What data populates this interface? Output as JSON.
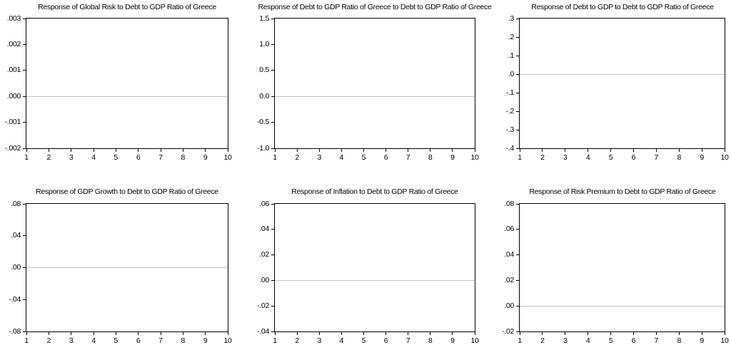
{
  "page": {
    "background": "#ffffff"
  },
  "colors": {
    "axis": "#000000",
    "zero_line": "#c4c4c4",
    "text": "#000000",
    "plot_background": "#ffffff"
  },
  "chart_data": [
    {
      "type": "line",
      "title": "Response of Global Risk to Debt to GDP Ratio of Greece",
      "xlabel": "",
      "ylabel": "",
      "xlim": [
        1,
        10
      ],
      "ylim": [
        -0.002,
        0.003
      ],
      "x_ticks": [
        1,
        2,
        3,
        4,
        5,
        6,
        7,
        8,
        9,
        10
      ],
      "y_tick_labels": [
        ".003",
        ".002",
        ".001",
        ".000",
        "-.001",
        "-.002"
      ],
      "y_tick_values": [
        0.003,
        0.002,
        0.001,
        0.0,
        -0.001,
        -0.002
      ],
      "zero_line": 0.0,
      "grid": false,
      "legend": "none",
      "series": []
    },
    {
      "type": "line",
      "title": "Response of Debt to GDP Ratio of Greece to Debt to GDP Ratio of Greece",
      "xlabel": "",
      "ylabel": "",
      "xlim": [
        1,
        10
      ],
      "ylim": [
        -1.0,
        1.5
      ],
      "x_ticks": [
        1,
        2,
        3,
        4,
        5,
        6,
        7,
        8,
        9,
        10
      ],
      "y_tick_labels": [
        "1.5",
        "1.0",
        "0.5",
        "0.0",
        "-0.5",
        "-1.0"
      ],
      "y_tick_values": [
        1.5,
        1.0,
        0.5,
        0.0,
        -0.5,
        -1.0
      ],
      "zero_line": 0.0,
      "grid": false,
      "legend": "none",
      "series": []
    },
    {
      "type": "line",
      "title": "Response of Debt to GDP to Debt to GDP Ratio of Greece",
      "xlabel": "",
      "ylabel": "",
      "xlim": [
        1,
        10
      ],
      "ylim": [
        -0.4,
        0.3
      ],
      "x_ticks": [
        1,
        2,
        3,
        4,
        5,
        6,
        7,
        8,
        9,
        10
      ],
      "y_tick_labels": [
        ".3",
        ".2",
        ".1",
        ".0",
        "-.1",
        "-.2",
        "-.3",
        "-.4"
      ],
      "y_tick_values": [
        0.3,
        0.2,
        0.1,
        0.0,
        -0.1,
        -0.2,
        -0.3,
        -0.4
      ],
      "zero_line": 0.0,
      "grid": false,
      "legend": "none",
      "series": []
    },
    {
      "type": "line",
      "title": "Response of GDP Growth to Debt to GDP Ratio of Greece",
      "xlabel": "",
      "ylabel": "",
      "xlim": [
        1,
        10
      ],
      "ylim": [
        -0.08,
        0.08
      ],
      "x_ticks": [
        1,
        2,
        3,
        4,
        5,
        6,
        7,
        8,
        9,
        10
      ],
      "y_tick_labels": [
        ".08",
        ".04",
        ".00",
        "-.04",
        "-.08"
      ],
      "y_tick_values": [
        0.08,
        0.04,
        0.0,
        -0.04,
        -0.08
      ],
      "zero_line": 0.0,
      "grid": false,
      "legend": "none",
      "series": []
    },
    {
      "type": "line",
      "title": "Response of Inflation to Debt to GDP Ratio of Greece",
      "xlabel": "",
      "ylabel": "",
      "xlim": [
        1,
        10
      ],
      "ylim": [
        -0.04,
        0.06
      ],
      "x_ticks": [
        1,
        2,
        3,
        4,
        5,
        6,
        7,
        8,
        9,
        10
      ],
      "y_tick_labels": [
        ".06",
        ".04",
        ".02",
        ".00",
        "-.02",
        "-.04"
      ],
      "y_tick_values": [
        0.06,
        0.04,
        0.02,
        0.0,
        -0.02,
        -0.04
      ],
      "zero_line": 0.0,
      "grid": false,
      "legend": "none",
      "series": []
    },
    {
      "type": "line",
      "title": "Response of Risk Premium to Debt to GDP Ratio of Greece",
      "xlabel": "",
      "ylabel": "",
      "xlim": [
        1,
        10
      ],
      "ylim": [
        -0.02,
        0.08
      ],
      "x_ticks": [
        1,
        2,
        3,
        4,
        5,
        6,
        7,
        8,
        9,
        10
      ],
      "y_tick_labels": [
        ".08",
        ".06",
        ".04",
        ".02",
        ".00",
        "-.02"
      ],
      "y_tick_values": [
        0.08,
        0.06,
        0.04,
        0.02,
        0.0,
        -0.02
      ],
      "zero_line": 0.0,
      "grid": false,
      "legend": "none",
      "series": []
    }
  ]
}
